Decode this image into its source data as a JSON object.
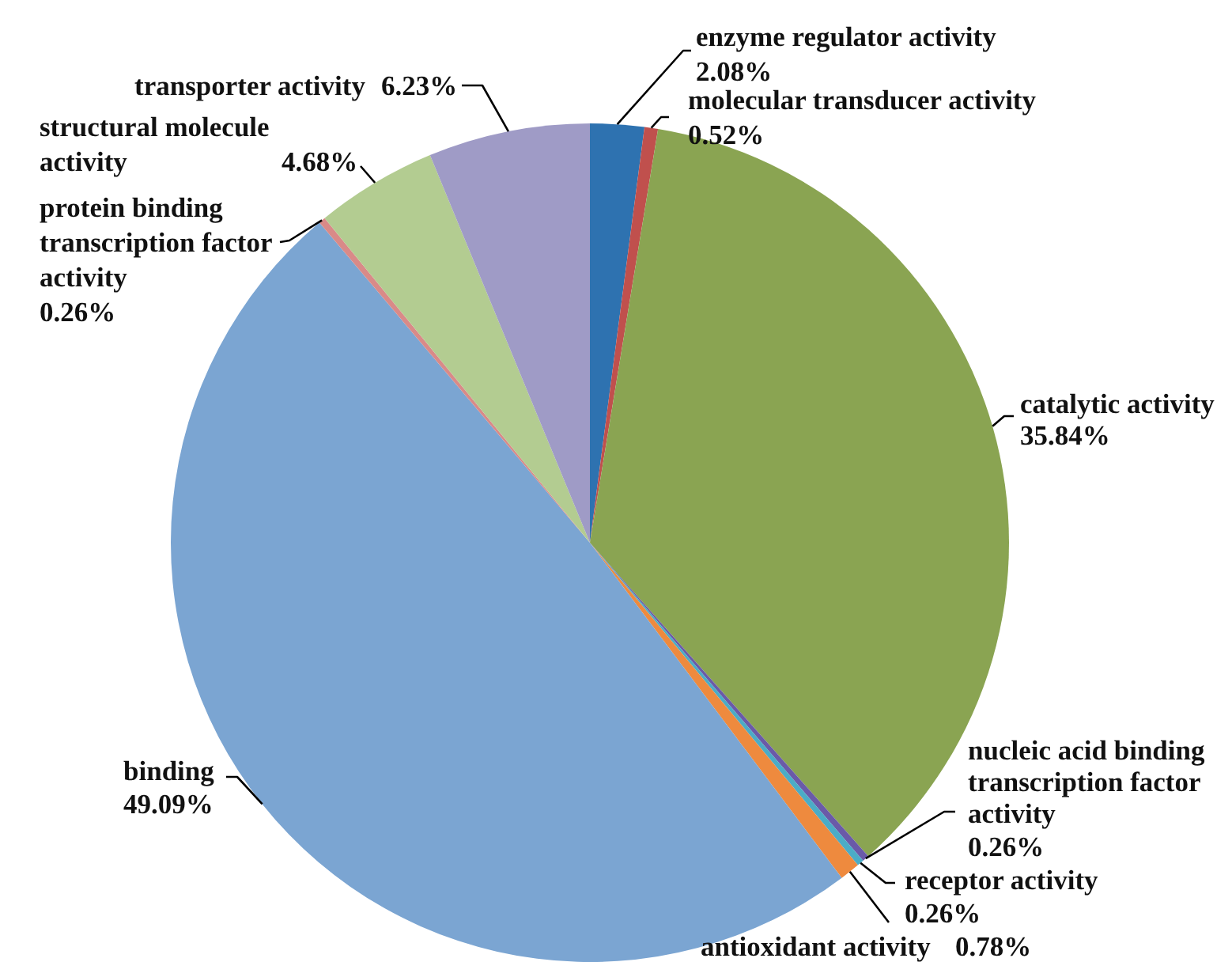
{
  "chart_data": {
    "type": "pie",
    "categories": [
      "enzyme regulator activity",
      "molecular transducer activity",
      "catalytic activity",
      "nucleic acid binding transcription factor activity",
      "receptor activity",
      "antioxidant activity",
      "binding",
      "protein binding transcription factor activity",
      "structural molecule activity",
      "transporter activity"
    ],
    "values": [
      2.08,
      0.52,
      35.84,
      0.26,
      0.26,
      0.78,
      49.09,
      0.26,
      4.68,
      6.23
    ],
    "colors": [
      "#2e72b0",
      "#c0504d",
      "#8aa452",
      "#6a5aa8",
      "#4bacc6",
      "#ee8a3e",
      "#7ba5d2",
      "#d98a88",
      "#b3cc91",
      "#9f9bc6"
    ],
    "value_labels": [
      "2.08%",
      "0.52%",
      "35.84%",
      "0.26%",
      "0.26%",
      "0.78%",
      "49.09%",
      "0.26%",
      "4.68%",
      "6.23%"
    ]
  }
}
